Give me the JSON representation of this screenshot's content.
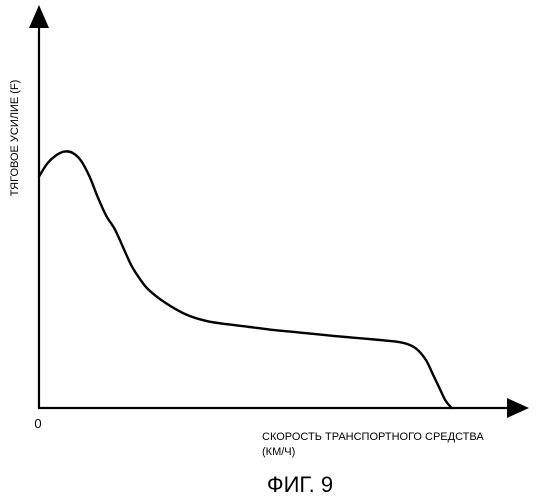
{
  "chart_data": {
    "type": "line",
    "title": "",
    "ylabel": "ТЯГОВОЕ УСИЛИЕ (F)",
    "xlabel_line1": "СКОРОСТЬ ТРАНСПОРТНОГО СРЕДСТВА",
    "xlabel_line2": "(КМ/Ч)",
    "origin_label": "0",
    "grid": false,
    "legend": "none",
    "xlim": [
      0,
      100
    ],
    "ylim": [
      0,
      100
    ],
    "series": [
      {
        "x": [
          0,
          2,
          4,
          6,
          8,
          10,
          12,
          14,
          16,
          18,
          20,
          22,
          24,
          26,
          30,
          35,
          40,
          45,
          50,
          55,
          60,
          65,
          70,
          75,
          80,
          85,
          88,
          90,
          92,
          93.5,
          95,
          96.5,
          98
        ],
        "y": [
          88,
          93,
          96,
          97.5,
          97,
          94,
          88,
          80,
          73,
          68,
          61,
          54,
          49,
          45,
          40,
          35.5,
          33,
          31.8,
          30.8,
          29.8,
          29,
          28.2,
          27.4,
          26.7,
          26,
          25.2,
          24,
          22,
          18,
          13,
          8,
          3,
          0
        ]
      }
    ]
  },
  "caption": "ФИГ. 9"
}
